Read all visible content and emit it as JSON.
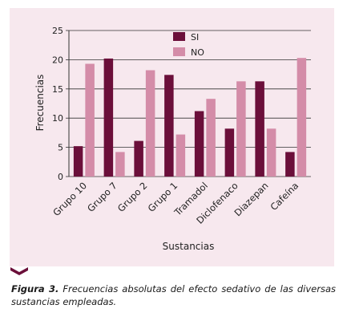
{
  "chart_data": {
    "type": "bar",
    "categories": [
      "Grupo 10",
      "Grupo 7",
      "Grupo 2",
      "Grupo 1",
      "Tramadol",
      "Diclofenaco",
      "Diazepan",
      "Cafeína"
    ],
    "series": [
      {
        "name": "SI",
        "values": [
          5.2,
          20.2,
          6.1,
          17.4,
          11.2,
          8.2,
          16.3,
          4.2
        ]
      },
      {
        "name": "NO",
        "values": [
          19.3,
          4.2,
          18.2,
          7.2,
          13.3,
          16.3,
          8.2,
          20.3
        ]
      }
    ],
    "colors": {
      "SI": "#6b0f3a",
      "NO": "#d48ca8"
    },
    "xlabel": "Sustancias",
    "ylabel": "Frecuencias",
    "ylim": [
      0,
      25
    ],
    "yticks": [
      "0",
      "5",
      "10",
      "15",
      "20",
      "25"
    ],
    "grid": true,
    "legend": "top"
  },
  "caption": {
    "label": "Figura 3.",
    "text": "Frecuencias absolutas del efecto sedativo de las diversas sustancias empleadas."
  }
}
